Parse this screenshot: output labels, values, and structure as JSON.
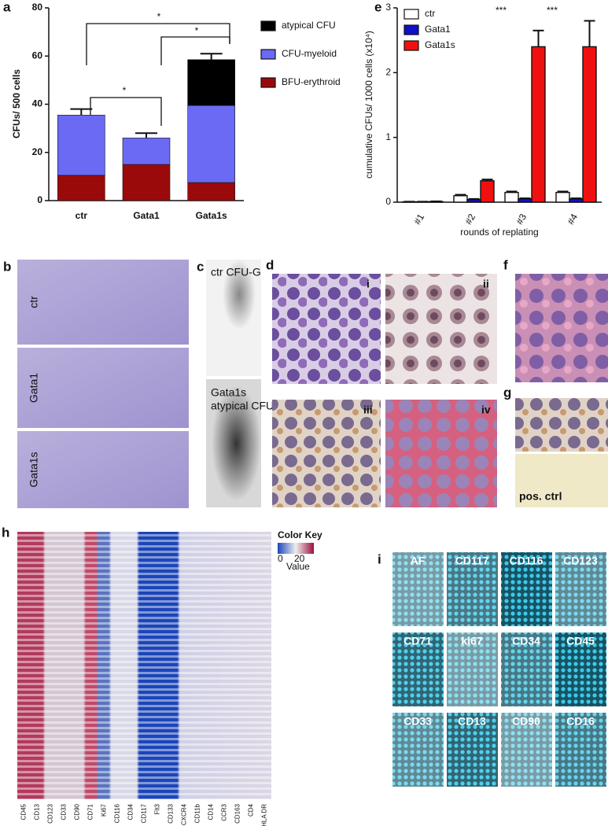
{
  "chart_data": [
    {
      "type": "bar",
      "panel": "a",
      "stacked": true,
      "ylabel": "CFUs/ 500 cells",
      "categories": [
        "ctr",
        "Gata1",
        "Gata1s"
      ],
      "series": [
        {
          "name": "BFU-erythroid",
          "color": "#9b0a0a",
          "values": [
            10.5,
            15,
            7.5
          ],
          "errors": [
            0.8,
            2.5,
            0.6
          ]
        },
        {
          "name": "CFU-myeloid",
          "color": "#6a6af5",
          "values": [
            25,
            11,
            32
          ],
          "errors": [
            2.5,
            2,
            null
          ]
        },
        {
          "name": "atypical CFU",
          "color": "#000000",
          "values": [
            0,
            0,
            19
          ],
          "errors": [
            null,
            null,
            2.5
          ]
        }
      ],
      "ylim": [
        0,
        80
      ],
      "yticks": [
        0,
        20,
        40,
        60,
        80
      ],
      "annotations": [
        "*",
        "*",
        "*"
      ]
    },
    {
      "type": "bar",
      "panel": "e",
      "stacked": false,
      "ylabel": "cumulative CFUs/ 1000 cells (x10⁴)",
      "xlabel": "rounds of replating",
      "categories": [
        "#1",
        "#2",
        "#3",
        "#4"
      ],
      "series": [
        {
          "name": "ctr",
          "color": "#ffffff",
          "values": [
            0.005,
            0.1,
            0.15,
            0.15
          ],
          "errors": [
            0.003,
            0.015,
            0.015,
            0.015
          ]
        },
        {
          "name": "Gata1",
          "color": "#1010c8",
          "values": [
            0.005,
            0.04,
            0.05,
            0.05
          ],
          "errors": [
            0.003,
            0.01,
            0.01,
            0.01
          ]
        },
        {
          "name": "Gata1s",
          "color": "#f01010",
          "values": [
            0.01,
            0.33,
            2.4,
            2.4
          ],
          "errors": [
            0.003,
            0.02,
            0.25,
            0.4
          ]
        }
      ],
      "ylim": [
        0,
        3
      ],
      "yticks": [
        0,
        1,
        2,
        3
      ],
      "annotations": [
        "***",
        "***"
      ]
    }
  ],
  "figure_panels": {
    "b": {
      "label": "b",
      "rows": [
        "ctr",
        "Gata1",
        "Gata1s"
      ]
    },
    "c": {
      "label": "c",
      "captions": [
        [
          "ctr CFU-G"
        ],
        [
          "Gata1s",
          "atypical CFU"
        ]
      ]
    },
    "d": {
      "label": "d",
      "images": [
        "i",
        "ii",
        "iii",
        "iv"
      ]
    },
    "f": {
      "label": "f"
    },
    "g": {
      "label": "g",
      "caption": "pos. ctrl"
    },
    "h": {
      "label": "h",
      "markers": [
        "CD45",
        "CD13",
        "CD123",
        "CD33",
        "CD90",
        "CD71",
        "Ki67",
        "CD116",
        "CD34",
        "CD117",
        "Flt3",
        "CD133",
        "CXCR4",
        "CD11b",
        "CD14",
        "CCR3",
        "CD163",
        "CD4",
        "HLA DR"
      ],
      "color_key": {
        "title": "Color Key",
        "ticks": [
          "0",
          "20"
        ],
        "label": "Value"
      }
    },
    "i": {
      "label": "i",
      "tiles": [
        "AF",
        "CD117",
        "CD116",
        "CD123",
        "CD71",
        "ki67",
        "CD34",
        "CD45",
        "CD33",
        "CD13",
        "CD90",
        "CD16"
      ]
    }
  }
}
